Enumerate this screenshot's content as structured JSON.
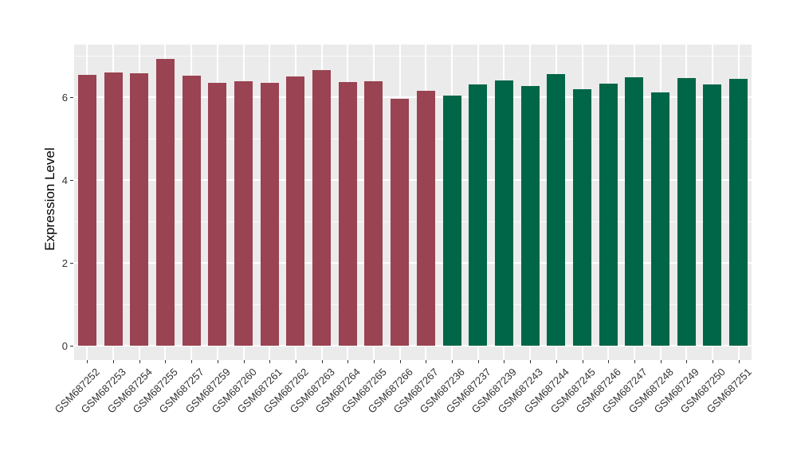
{
  "chart_data": {
    "type": "bar",
    "title": "",
    "xlabel": "",
    "ylabel": "Expression Level",
    "categories": [
      "GSM687252",
      "GSM687253",
      "GSM687254",
      "GSM687255",
      "GSM687257",
      "GSM687259",
      "GSM687260",
      "GSM687261",
      "GSM687262",
      "GSM687263",
      "GSM687264",
      "GSM687265",
      "GSM687266",
      "GSM687267",
      "GSM687236",
      "GSM687237",
      "GSM687239",
      "GSM687243",
      "GSM687244",
      "GSM687245",
      "GSM687246",
      "GSM687247",
      "GSM687248",
      "GSM687249",
      "GSM687250",
      "GSM687251"
    ],
    "values": [
      6.54,
      6.6,
      6.57,
      6.92,
      6.52,
      6.34,
      6.38,
      6.34,
      6.5,
      6.66,
      6.36,
      6.38,
      5.97,
      6.15,
      6.04,
      6.3,
      6.4,
      6.26,
      6.55,
      6.2,
      6.33,
      6.49,
      6.11,
      6.47,
      6.3,
      6.45
    ],
    "groups": [
      "group1",
      "group1",
      "group1",
      "group1",
      "group1",
      "group1",
      "group1",
      "group1",
      "group1",
      "group1",
      "group1",
      "group1",
      "group1",
      "group1",
      "group2",
      "group2",
      "group2",
      "group2",
      "group2",
      "group2",
      "group2",
      "group2",
      "group2",
      "group2",
      "group2",
      "group2"
    ],
    "group_colors": {
      "group1": "#9A4352",
      "group2": "#006648"
    },
    "yticks": [
      0,
      2,
      4,
      6
    ],
    "minor_yticks": [
      1,
      3,
      5,
      7
    ],
    "ylim": [
      -0.35,
      7.27
    ],
    "grid": true,
    "legend_position": "none",
    "panel_background": "#EBEBEB",
    "gridline_color": "#FFFFFF"
  }
}
